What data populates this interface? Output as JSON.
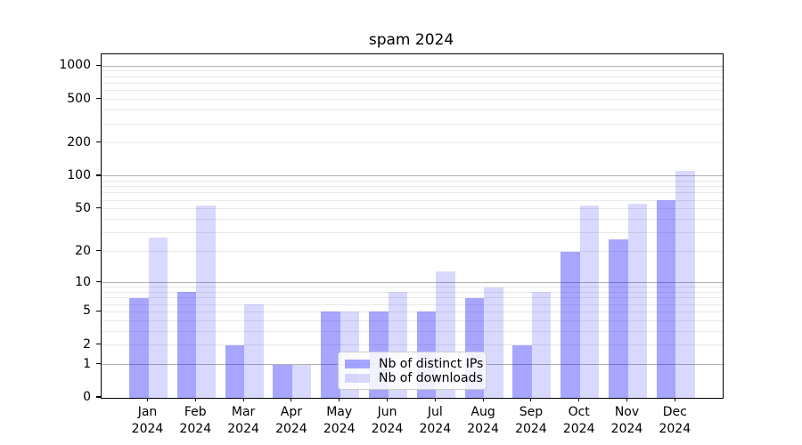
{
  "chart_data": {
    "type": "bar",
    "title": "spam 2024",
    "categories": [
      "Jan",
      "Feb",
      "Mar",
      "Apr",
      "May",
      "Jun",
      "Jul",
      "Aug",
      "Sep",
      "Oct",
      "Nov",
      "Dec"
    ],
    "category_sub": "2024",
    "series": [
      {
        "name": "Nb of distinct IPs",
        "color": "rgba(0,0,255,0.35)",
        "values": [
          7,
          8,
          2,
          1,
          5,
          5,
          5,
          7,
          2,
          20,
          26,
          60
        ]
      },
      {
        "name": "Nb of downloads",
        "color": "rgba(0,0,255,0.15)",
        "values": [
          27,
          54,
          6,
          1,
          5,
          8,
          13,
          9,
          8,
          54,
          56,
          112
        ]
      }
    ],
    "yscale": "log1p",
    "ylim": [
      0,
      1278
    ],
    "yticks": [
      0,
      1,
      2,
      5,
      10,
      20,
      50,
      100,
      200,
      500,
      1000
    ],
    "yticks_minor": [
      3,
      4,
      6,
      7,
      8,
      9,
      30,
      40,
      60,
      70,
      80,
      90,
      300,
      400,
      600,
      700,
      800,
      900
    ],
    "grid": true,
    "legend_position": "lower-center-inside"
  },
  "colors": {
    "bar_distinct_ips": "rgba(0,0,255,0.35)",
    "bar_downloads": "rgba(0,0,255,0.15)",
    "grid_major": "#b2b2b2",
    "grid_minor": "#e8e8e8",
    "axis": "#000000",
    "background": "#ffffff"
  }
}
